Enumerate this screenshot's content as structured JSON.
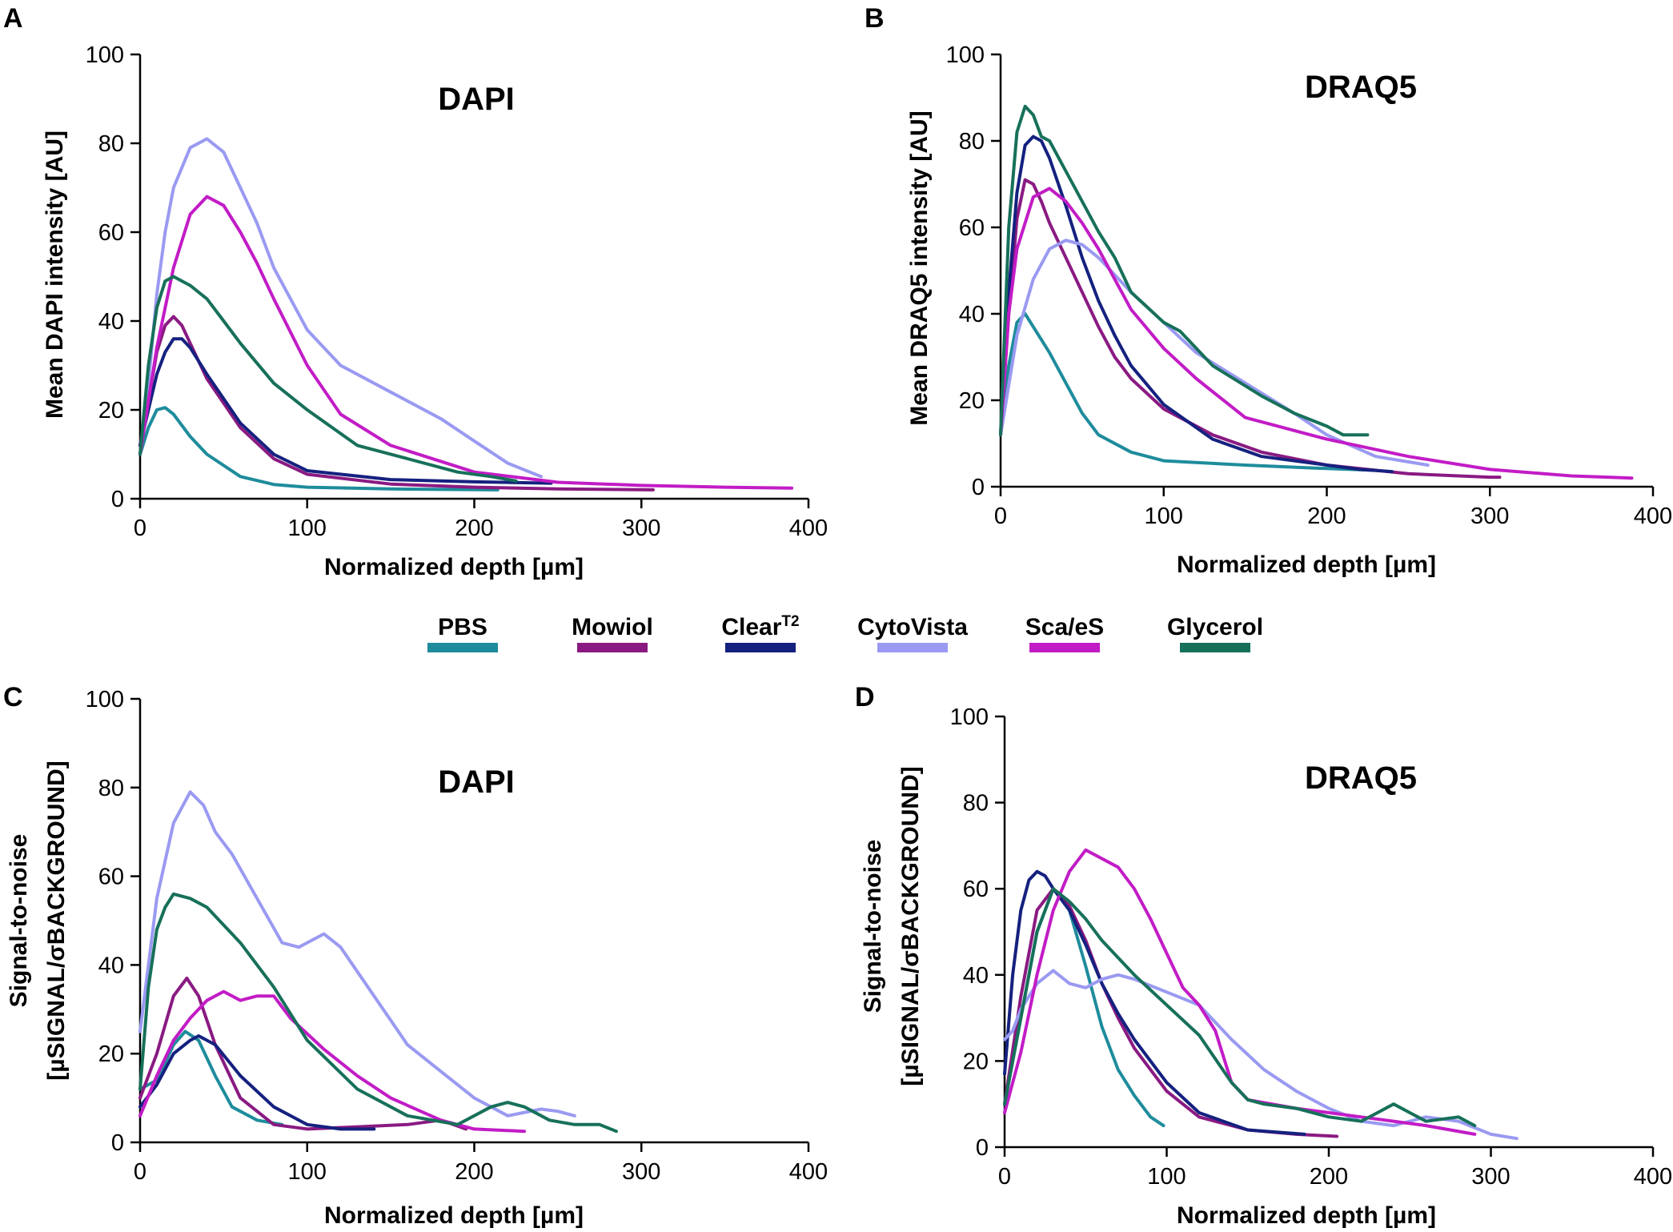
{
  "colors": {
    "PBS": "#1e8c9c",
    "Mowiol": "#8a1a82",
    "ClearT2": "#15217f",
    "CytoVista": "#9a9af2",
    "ScaleS": "#c21cc6",
    "Glycerol": "#17705a"
  },
  "legend": [
    {
      "key": "PBS",
      "label": "PBS",
      "sup": ""
    },
    {
      "key": "Mowiol",
      "label": "Mowiol",
      "sup": ""
    },
    {
      "key": "ClearT2",
      "label": "Clear",
      "sup": "T2"
    },
    {
      "key": "CytoVista",
      "label": "CytoVista",
      "sup": ""
    },
    {
      "key": "ScaleS",
      "label": "Sca/eS",
      "sup": ""
    },
    {
      "key": "Glycerol",
      "label": "Glycerol",
      "sup": ""
    }
  ],
  "chart_data": [
    {
      "panel": "A",
      "type": "line",
      "title": "DAPI",
      "xlabel": "Normalized depth [µm]",
      "ylabel_lines": [
        "Mean DAPI intensity [AU]"
      ],
      "xlim": [
        0,
        400
      ],
      "ylim": [
        0,
        100
      ],
      "xticks": [
        0,
        100,
        200,
        300,
        400
      ],
      "yticks": [
        0,
        20,
        40,
        60,
        80,
        100
      ],
      "series": [
        {
          "name": "PBS",
          "x": [
            0,
            5,
            10,
            15,
            20,
            30,
            40,
            60,
            80,
            100,
            150,
            214
          ],
          "y": [
            10,
            16,
            20,
            20.5,
            19,
            14,
            10,
            5,
            3.2,
            2.6,
            2.2,
            2
          ]
        },
        {
          "name": "Mowiol",
          "x": [
            0,
            5,
            10,
            15,
            20,
            25,
            30,
            40,
            60,
            80,
            100,
            150,
            200,
            250,
            307
          ],
          "y": [
            12,
            22,
            33,
            39,
            41,
            39,
            35,
            27,
            16,
            9,
            5.5,
            3.3,
            2.6,
            2.2,
            2
          ]
        },
        {
          "name": "ClearT2",
          "x": [
            0,
            5,
            10,
            15,
            20,
            25,
            30,
            40,
            60,
            80,
            100,
            150,
            200,
            246
          ],
          "y": [
            12,
            20,
            28,
            33,
            36,
            36,
            34,
            28,
            17,
            10,
            6.3,
            4.3,
            3.8,
            3.5
          ]
        },
        {
          "name": "CytoVista",
          "x": [
            0,
            5,
            10,
            15,
            20,
            30,
            40,
            50,
            60,
            70,
            80,
            100,
            120,
            150,
            180,
            200,
            220,
            240
          ],
          "y": [
            10,
            26,
            46,
            60,
            70,
            79,
            81,
            78,
            70,
            62,
            52,
            38,
            30,
            24,
            18,
            13,
            8,
            5
          ]
        },
        {
          "name": "ScaleS",
          "x": [
            0,
            10,
            20,
            30,
            40,
            50,
            60,
            70,
            80,
            100,
            120,
            150,
            200,
            250,
            300,
            350,
            390
          ],
          "y": [
            10,
            34,
            52,
            64,
            68,
            66,
            60,
            53,
            45,
            30,
            19,
            12,
            6,
            3.7,
            3,
            2.6,
            2.4
          ]
        },
        {
          "name": "Glycerol",
          "x": [
            0,
            5,
            10,
            15,
            20,
            30,
            40,
            50,
            60,
            80,
            100,
            130,
            160,
            190,
            210,
            225
          ],
          "y": [
            10,
            30,
            43,
            49,
            50,
            48,
            45,
            40,
            35,
            26,
            20,
            12,
            9,
            6,
            5,
            4
          ]
        }
      ]
    },
    {
      "panel": "B",
      "type": "line",
      "title": "DRAQ5",
      "xlabel": "Normalized depth [µm]",
      "ylabel_lines": [
        "Mean DRAQ5 intensity [AU]"
      ],
      "xlim": [
        0,
        400
      ],
      "ylim": [
        0,
        100
      ],
      "xticks": [
        0,
        100,
        200,
        300,
        400
      ],
      "yticks": [
        0,
        20,
        40,
        60,
        80,
        100
      ],
      "series": [
        {
          "name": "PBS",
          "x": [
            0,
            5,
            10,
            15,
            20,
            30,
            40,
            50,
            60,
            80,
            100,
            150,
            200,
            230
          ],
          "y": [
            12,
            28,
            38,
            40,
            37,
            31,
            24,
            17,
            12,
            8,
            6,
            5,
            4.2,
            3.8
          ]
        },
        {
          "name": "Mowiol",
          "x": [
            0,
            5,
            10,
            15,
            20,
            25,
            30,
            40,
            50,
            60,
            70,
            80,
            100,
            130,
            160,
            200,
            250,
            300,
            306
          ],
          "y": [
            12,
            40,
            62,
            71,
            70,
            66,
            61,
            53,
            45,
            37,
            30,
            25,
            18,
            12,
            8,
            5,
            3,
            2.2,
            2.2
          ]
        },
        {
          "name": "ClearT2",
          "x": [
            0,
            5,
            10,
            15,
            20,
            25,
            30,
            40,
            50,
            60,
            70,
            80,
            100,
            130,
            160,
            200,
            220,
            240
          ],
          "y": [
            12,
            45,
            68,
            79,
            81,
            80,
            76,
            65,
            53,
            43,
            35,
            28,
            19,
            11,
            7,
            5,
            4,
            3.5
          ]
        },
        {
          "name": "CytoVista",
          "x": [
            0,
            10,
            20,
            30,
            40,
            50,
            60,
            70,
            80,
            100,
            120,
            150,
            180,
            200,
            230,
            262
          ],
          "y": [
            12,
            35,
            48,
            55,
            57,
            56,
            53,
            49,
            45,
            38,
            31,
            24,
            17,
            12,
            7,
            5
          ]
        },
        {
          "name": "ScaleS",
          "x": [
            0,
            5,
            10,
            20,
            30,
            40,
            50,
            60,
            70,
            80,
            100,
            120,
            150,
            200,
            250,
            300,
            350,
            387
          ],
          "y": [
            12,
            40,
            55,
            67,
            69,
            66,
            61,
            55,
            48,
            41,
            32,
            25,
            16,
            11,
            7,
            4,
            2.5,
            2
          ]
        },
        {
          "name": "Glycerol",
          "x": [
            0,
            5,
            10,
            15,
            20,
            25,
            30,
            40,
            50,
            60,
            70,
            80,
            100,
            110,
            130,
            160,
            180,
            200,
            210,
            225
          ],
          "y": [
            12,
            60,
            82,
            88,
            86,
            81,
            80,
            73,
            66,
            59,
            53,
            45,
            38,
            36,
            28,
            21,
            17,
            14,
            12,
            12
          ]
        }
      ]
    },
    {
      "panel": "C",
      "type": "line",
      "title": "DAPI",
      "xlabel": "Normalized depth [µm]",
      "ylabel_lines": [
        "Signal-to-noise",
        "[µSIGNAL/σBACKGROUND]"
      ],
      "xlim": [
        0,
        400
      ],
      "ylim": [
        0,
        100
      ],
      "xticks": [
        0,
        100,
        200,
        300,
        400
      ],
      "yticks": [
        0,
        20,
        40,
        60,
        80,
        100
      ],
      "series": [
        {
          "name": "PBS",
          "x": [
            0,
            10,
            20,
            27,
            35,
            45,
            55,
            70,
            85
          ],
          "y": [
            12,
            14,
            22,
            25,
            23,
            15,
            8,
            5,
            4
          ]
        },
        {
          "name": "Mowiol",
          "x": [
            0,
            10,
            20,
            28,
            35,
            45,
            60,
            80,
            100,
            130,
            160,
            180,
            195
          ],
          "y": [
            10,
            20,
            33,
            37,
            33,
            22,
            10,
            4,
            3,
            3.5,
            4,
            5,
            3
          ]
        },
        {
          "name": "ClearT2",
          "x": [
            0,
            10,
            20,
            30,
            35,
            45,
            60,
            80,
            100,
            120,
            140
          ],
          "y": [
            8,
            13,
            20,
            23,
            24,
            22,
            15,
            8,
            4,
            3,
            3
          ]
        },
        {
          "name": "CytoVista",
          "x": [
            0,
            10,
            20,
            30,
            38,
            45,
            55,
            70,
            85,
            95,
            110,
            120,
            140,
            160,
            180,
            200,
            220,
            240,
            250,
            260
          ],
          "y": [
            25,
            55,
            72,
            79,
            76,
            70,
            65,
            55,
            45,
            44,
            47,
            44,
            33,
            22,
            16,
            10,
            6,
            7.5,
            7,
            6
          ]
        },
        {
          "name": "ScaleS",
          "x": [
            0,
            10,
            20,
            30,
            40,
            50,
            60,
            70,
            80,
            90,
            110,
            130,
            150,
            180,
            200,
            230
          ],
          "y": [
            6,
            15,
            23,
            28,
            32,
            34,
            32,
            33,
            33,
            28,
            21,
            15,
            10,
            5,
            3,
            2.5
          ]
        },
        {
          "name": "Glycerol",
          "x": [
            0,
            5,
            10,
            15,
            20,
            30,
            40,
            60,
            80,
            100,
            130,
            160,
            190,
            210,
            220,
            230,
            245,
            260,
            275,
            285
          ],
          "y": [
            12,
            35,
            48,
            53,
            56,
            55,
            53,
            45,
            35,
            23,
            12,
            6,
            4,
            8,
            9,
            8,
            5,
            4,
            4,
            2.5
          ]
        }
      ]
    },
    {
      "panel": "D",
      "type": "line",
      "title": "DRAQ5",
      "xlabel": "Normalized depth [µm]",
      "ylabel_lines": [
        "Signal-to-noise",
        "[µSIGNAL/σBACKGROUND]"
      ],
      "xlim": [
        0,
        400
      ],
      "ylim": [
        0,
        100
      ],
      "xticks": [
        0,
        100,
        200,
        300,
        400
      ],
      "yticks": [
        0,
        20,
        40,
        60,
        80,
        100
      ],
      "series": [
        {
          "name": "PBS",
          "x": [
            0,
            10,
            20,
            30,
            40,
            50,
            60,
            70,
            80,
            90,
            98
          ],
          "y": [
            10,
            30,
            50,
            60,
            55,
            42,
            28,
            18,
            12,
            7,
            5
          ]
        },
        {
          "name": "Mowiol",
          "x": [
            0,
            10,
            20,
            30,
            40,
            50,
            60,
            70,
            80,
            100,
            120,
            150,
            180,
            205
          ],
          "y": [
            10,
            35,
            55,
            60,
            56,
            48,
            38,
            30,
            23,
            13,
            7,
            4,
            3,
            2.5
          ]
        },
        {
          "name": "ClearT2",
          "x": [
            0,
            5,
            10,
            15,
            20,
            25,
            30,
            40,
            50,
            60,
            70,
            80,
            100,
            120,
            150,
            185
          ],
          "y": [
            17,
            40,
            55,
            62,
            64,
            63,
            60,
            55,
            47,
            38,
            31,
            25,
            15,
            8,
            4,
            3
          ]
        },
        {
          "name": "CytoVista",
          "x": [
            0,
            5,
            10,
            20,
            30,
            40,
            50,
            60,
            70,
            80,
            100,
            120,
            140,
            160,
            180,
            200,
            220,
            240,
            260,
            280,
            300,
            316
          ],
          "y": [
            25,
            27,
            32,
            38,
            41,
            38,
            37,
            39,
            40,
            39,
            36,
            33,
            25,
            18,
            13,
            9,
            6,
            5,
            7,
            6,
            3,
            2
          ]
        },
        {
          "name": "ScaleS",
          "x": [
            0,
            10,
            20,
            30,
            40,
            50,
            60,
            70,
            80,
            90,
            100,
            110,
            120,
            130,
            140,
            150,
            180,
            220,
            260,
            290
          ],
          "y": [
            8,
            22,
            40,
            55,
            64,
            69,
            67,
            65,
            60,
            53,
            45,
            37,
            33,
            27,
            15,
            11,
            9,
            7,
            5,
            3
          ]
        },
        {
          "name": "Glycerol",
          "x": [
            0,
            10,
            20,
            30,
            40,
            50,
            60,
            80,
            100,
            120,
            140,
            150,
            160,
            180,
            200,
            220,
            230,
            240,
            250,
            260,
            280,
            290
          ],
          "y": [
            10,
            30,
            50,
            60,
            57,
            53,
            48,
            40,
            33,
            26,
            15,
            11,
            10,
            9,
            7,
            6,
            8,
            10,
            8,
            6,
            7,
            5
          ]
        }
      ]
    }
  ]
}
